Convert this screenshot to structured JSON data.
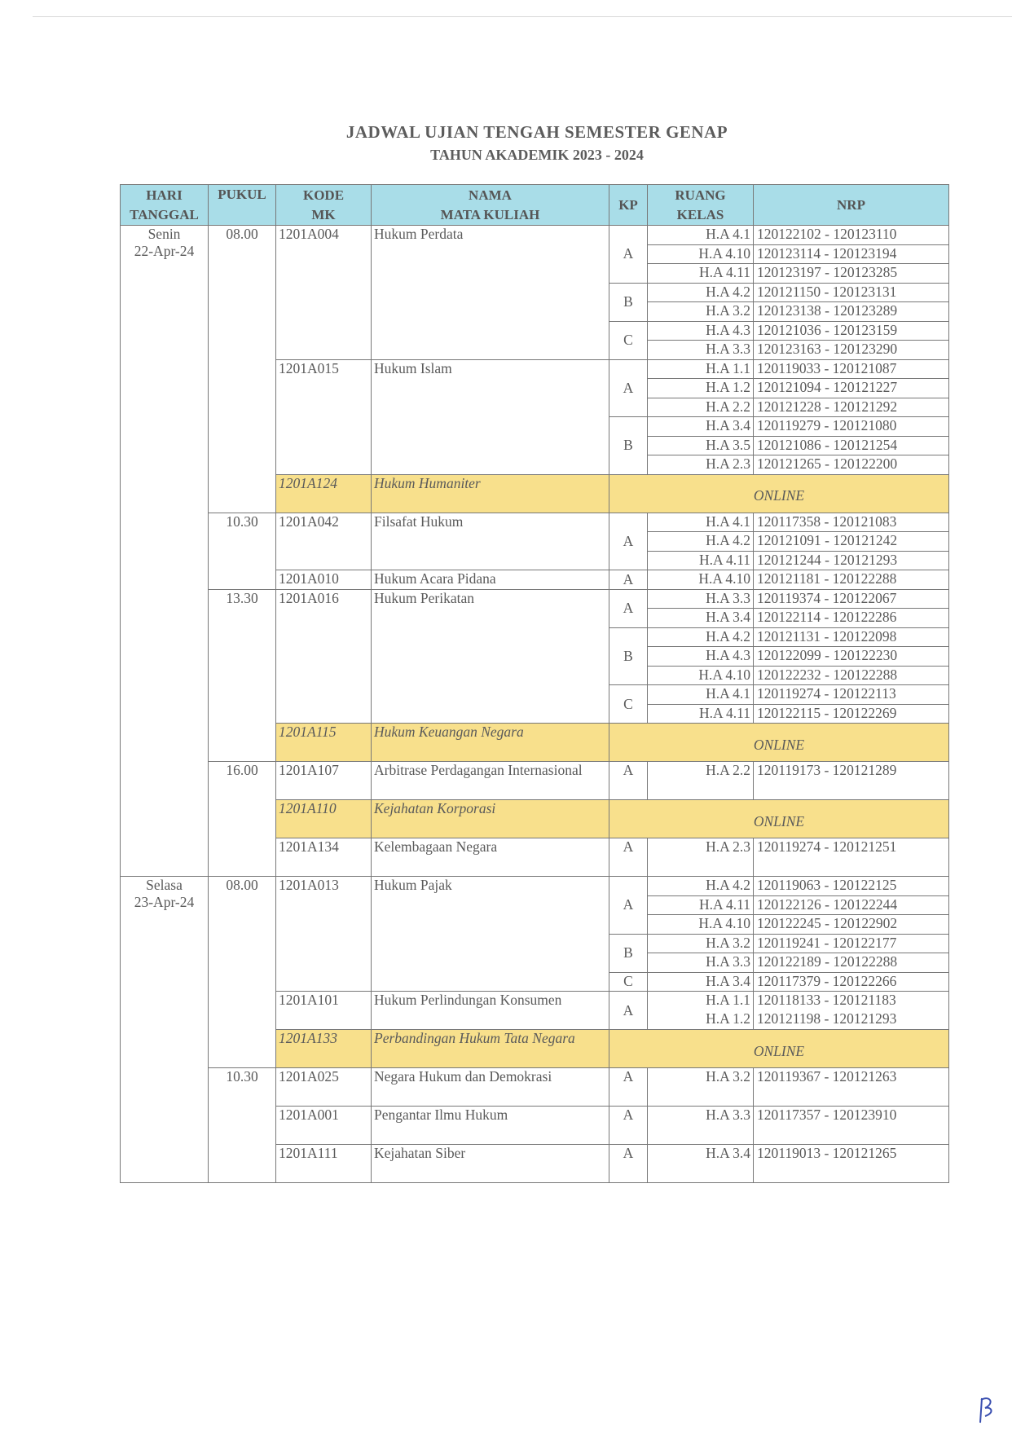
{
  "title": "JADWAL UJIAN TENGAH SEMESTER GENAP",
  "subtitle": "TAHUN AKADEMIK 2023 - 2024",
  "headers": {
    "hari": "HARI",
    "tanggal": "TANGGAL",
    "pukul": "PUKUL",
    "kode1": "KODE",
    "kode2": "MK",
    "nama1": "NAMA",
    "nama2": "MATA KULIAH",
    "kp": "KP",
    "ruang1": "RUANG",
    "ruang2": "KELAS",
    "nrp": "NRP"
  },
  "colors": {
    "header_bg": "#a9dde8",
    "online_bg": "#f8e08c"
  },
  "days": [
    {
      "hari": "Senin",
      "tanggal": "22-Apr-24",
      "slots": [
        {
          "pukul": "08.00",
          "courses": [
            {
              "kode": "1201A004",
              "nama": "Hukum Perdata",
              "groups": [
                {
                  "kp": "A",
                  "rooms": [
                    {
                      "ruang": "H.A 4.1",
                      "nrp": "120122102 - 120123110"
                    },
                    {
                      "ruang": "H.A 4.10",
                      "nrp": "120123114 - 120123194"
                    },
                    {
                      "ruang": "H.A 4.11",
                      "nrp": "120123197 - 120123285"
                    }
                  ]
                },
                {
                  "kp": "B",
                  "rooms": [
                    {
                      "ruang": "H.A 4.2",
                      "nrp": "120121150 - 120123131"
                    },
                    {
                      "ruang": "H.A 3.2",
                      "nrp": "120123138 - 120123289"
                    }
                  ]
                },
                {
                  "kp": "C",
                  "rooms": [
                    {
                      "ruang": "H.A 4.3",
                      "nrp": "120121036 - 120123159"
                    },
                    {
                      "ruang": "H.A 3.3",
                      "nrp": "120123163 - 120123290"
                    }
                  ]
                }
              ]
            },
            {
              "kode": "1201A015",
              "nama": "Hukum Islam",
              "groups": [
                {
                  "kp": "A",
                  "rooms": [
                    {
                      "ruang": "H.A 1.1",
                      "nrp": "120119033 - 120121087"
                    },
                    {
                      "ruang": "H.A 1.2",
                      "nrp": "120121094 - 120121227"
                    },
                    {
                      "ruang": "H.A 2.2",
                      "nrp": "120121228 - 120121292"
                    }
                  ]
                },
                {
                  "kp": "B",
                  "rooms": [
                    {
                      "ruang": "H.A 3.4",
                      "nrp": "120119279 - 120121080"
                    },
                    {
                      "ruang": "H.A 3.5",
                      "nrp": "120121086 - 120121254"
                    },
                    {
                      "ruang": "H.A 2.3",
                      "nrp": "120121265 - 120122200"
                    }
                  ]
                }
              ]
            },
            {
              "kode": "1201A124",
              "nama": "Hukum Humaniter",
              "online": "ONLINE"
            }
          ]
        },
        {
          "pukul": "10.30",
          "courses": [
            {
              "kode": "1201A042",
              "nama": "Filsafat Hukum",
              "groups": [
                {
                  "kp": "A",
                  "rooms": [
                    {
                      "ruang": "H.A 4.1",
                      "nrp": "120117358 - 120121083"
                    },
                    {
                      "ruang": "H.A 4.2",
                      "nrp": "120121091 - 120121242"
                    },
                    {
                      "ruang": "H.A 4.11",
                      "nrp": "120121244 - 120121293"
                    }
                  ]
                }
              ]
            },
            {
              "kode": "1201A010",
              "nama": "Hukum Acara Pidana",
              "groups": [
                {
                  "kp": "A",
                  "rooms": [
                    {
                      "ruang": "H.A 4.10",
                      "nrp": "120121181 - 120122288"
                    }
                  ]
                }
              ]
            }
          ]
        },
        {
          "pukul": "13.30",
          "courses": [
            {
              "kode": "1201A016",
              "nama": "Hukum Perikatan",
              "groups": [
                {
                  "kp": "A",
                  "rooms": [
                    {
                      "ruang": "H.A 3.3",
                      "nrp": "120119374 - 120122067"
                    },
                    {
                      "ruang": "H.A 3.4",
                      "nrp": "120122114 - 120122286"
                    }
                  ]
                },
                {
                  "kp": "B",
                  "rooms": [
                    {
                      "ruang": "H.A 4.2",
                      "nrp": "120121131 - 120122098"
                    },
                    {
                      "ruang": "H.A 4.3",
                      "nrp": "120122099 - 120122230"
                    },
                    {
                      "ruang": "H.A 4.10",
                      "nrp": "120122232 - 120122288"
                    }
                  ]
                },
                {
                  "kp": "C",
                  "rooms": [
                    {
                      "ruang": "H.A 4.1",
                      "nrp": "120119274 - 120122113"
                    },
                    {
                      "ruang": "H.A 4.11",
                      "nrp": "120122115 - 120122269"
                    }
                  ]
                }
              ]
            },
            {
              "kode": "1201A115",
              "nama": "Hukum Keuangan Negara",
              "online": "ONLINE"
            }
          ]
        },
        {
          "pukul": "16.00",
          "courses": [
            {
              "kode": "1201A107",
              "nama": "Arbitrase Perdagangan Internasional",
              "groups": [
                {
                  "kp": "A",
                  "rooms": [
                    {
                      "ruang": "H.A 2.2",
                      "nrp": "120119173 - 120121289"
                    }
                  ]
                }
              ]
            },
            {
              "kode": "1201A110",
              "nama": "Kejahatan Korporasi",
              "online": "ONLINE"
            },
            {
              "kode": "1201A134",
              "nama": "Kelembagaan Negara",
              "groups": [
                {
                  "kp": "A",
                  "rooms": [
                    {
                      "ruang": "H.A 2.3",
                      "nrp": "120119274 - 120121251"
                    }
                  ]
                }
              ]
            }
          ]
        }
      ]
    },
    {
      "hari": "Selasa",
      "tanggal": "23-Apr-24",
      "slots": [
        {
          "pukul": "08.00",
          "courses": [
            {
              "kode": "1201A013",
              "nama": "Hukum Pajak",
              "groups": [
                {
                  "kp": "A",
                  "rooms": [
                    {
                      "ruang": "H.A 4.2",
                      "nrp": "120119063 - 120122125"
                    },
                    {
                      "ruang": "H.A 4.11",
                      "nrp": "120122126 - 120122244"
                    },
                    {
                      "ruang": "H.A 4.10",
                      "nrp": "120122245 - 120122902"
                    }
                  ]
                },
                {
                  "kp": "B",
                  "rooms": [
                    {
                      "ruang": "H.A 3.2",
                      "nrp": "120119241 - 120122177"
                    },
                    {
                      "ruang": "H.A 3.3",
                      "nrp": "120122189 - 120122288"
                    }
                  ]
                },
                {
                  "kp": "C",
                  "rooms": [
                    {
                      "ruang": "H.A 3.4",
                      "nrp": "120117379 - 120122266"
                    }
                  ]
                }
              ]
            },
            {
              "kode": "1201A101",
              "nama": "Hukum Perlindungan Konsumen",
              "groups": [
                {
                  "kp": "A",
                  "rooms": [
                    {
                      "ruang": "H.A 1.1",
                      "nrp": "120118133 - 120121183"
                    },
                    {
                      "ruang": "H.A 1.2",
                      "nrp": "120121198 - 120121293"
                    }
                  ]
                }
              ]
            },
            {
              "kode": "1201A133",
              "nama": "Perbandingan Hukum Tata Negara",
              "online": "ONLINE"
            }
          ]
        },
        {
          "pukul": "10.30",
          "courses": [
            {
              "kode": "1201A025",
              "nama": "Negara Hukum dan Demokrasi",
              "groups": [
                {
                  "kp": "A",
                  "rooms": [
                    {
                      "ruang": "H.A 3.2",
                      "nrp": "120119367 - 120121263"
                    }
                  ]
                }
              ]
            },
            {
              "kode": "1201A001",
              "nama": "Pengantar Ilmu Hukum",
              "groups": [
                {
                  "kp": "A",
                  "rooms": [
                    {
                      "ruang": "H.A 3.3",
                      "nrp": "120117357 - 120123910"
                    }
                  ]
                }
              ]
            },
            {
              "kode": "1201A111",
              "nama": "Kejahatan Siber",
              "groups": [
                {
                  "kp": "A",
                  "rooms": [
                    {
                      "ruang": "H.A 3.4",
                      "nrp": "120119013 - 120121265"
                    }
                  ]
                }
              ]
            }
          ]
        }
      ]
    }
  ]
}
